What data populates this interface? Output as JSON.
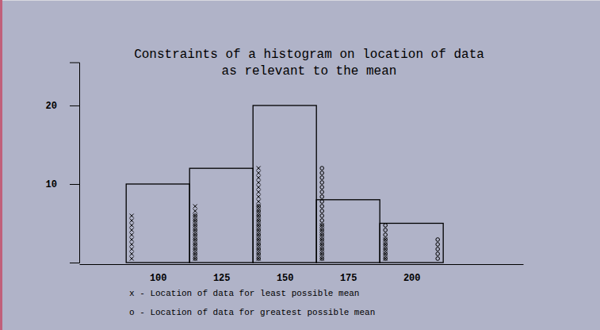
{
  "chart_data": {
    "type": "histogram",
    "title": [
      "Constraints of a histogram on location of data",
      "as relevant to the mean"
    ],
    "bins": [
      87.5,
      112.5,
      137.5,
      162.5,
      187.5,
      212.5
    ],
    "values": [
      10,
      12,
      20,
      8,
      5
    ],
    "color": "#000000",
    "xlim": [
      69,
      244
    ],
    "xticks": [
      100,
      125,
      150,
      175,
      200
    ],
    "ylim": [
      0,
      25.5
    ],
    "yticks": [
      10,
      20
    ],
    "series": [
      {
        "name": "x - Location of data for least possible mean",
        "marker": "x",
        "x": [
          87.5,
          112.5,
          137.5,
          162.5,
          187.5
        ],
        "values": [
          10,
          12,
          20,
          8,
          5
        ]
      },
      {
        "name": "o - Location of data for greatest possible mean",
        "marker": "o",
        "x": [
          112.5,
          137.5,
          162.5,
          187.5,
          212.5
        ],
        "values": [
          10,
          12,
          20,
          8,
          5
        ]
      }
    ],
    "legend": "bottom-left"
  }
}
